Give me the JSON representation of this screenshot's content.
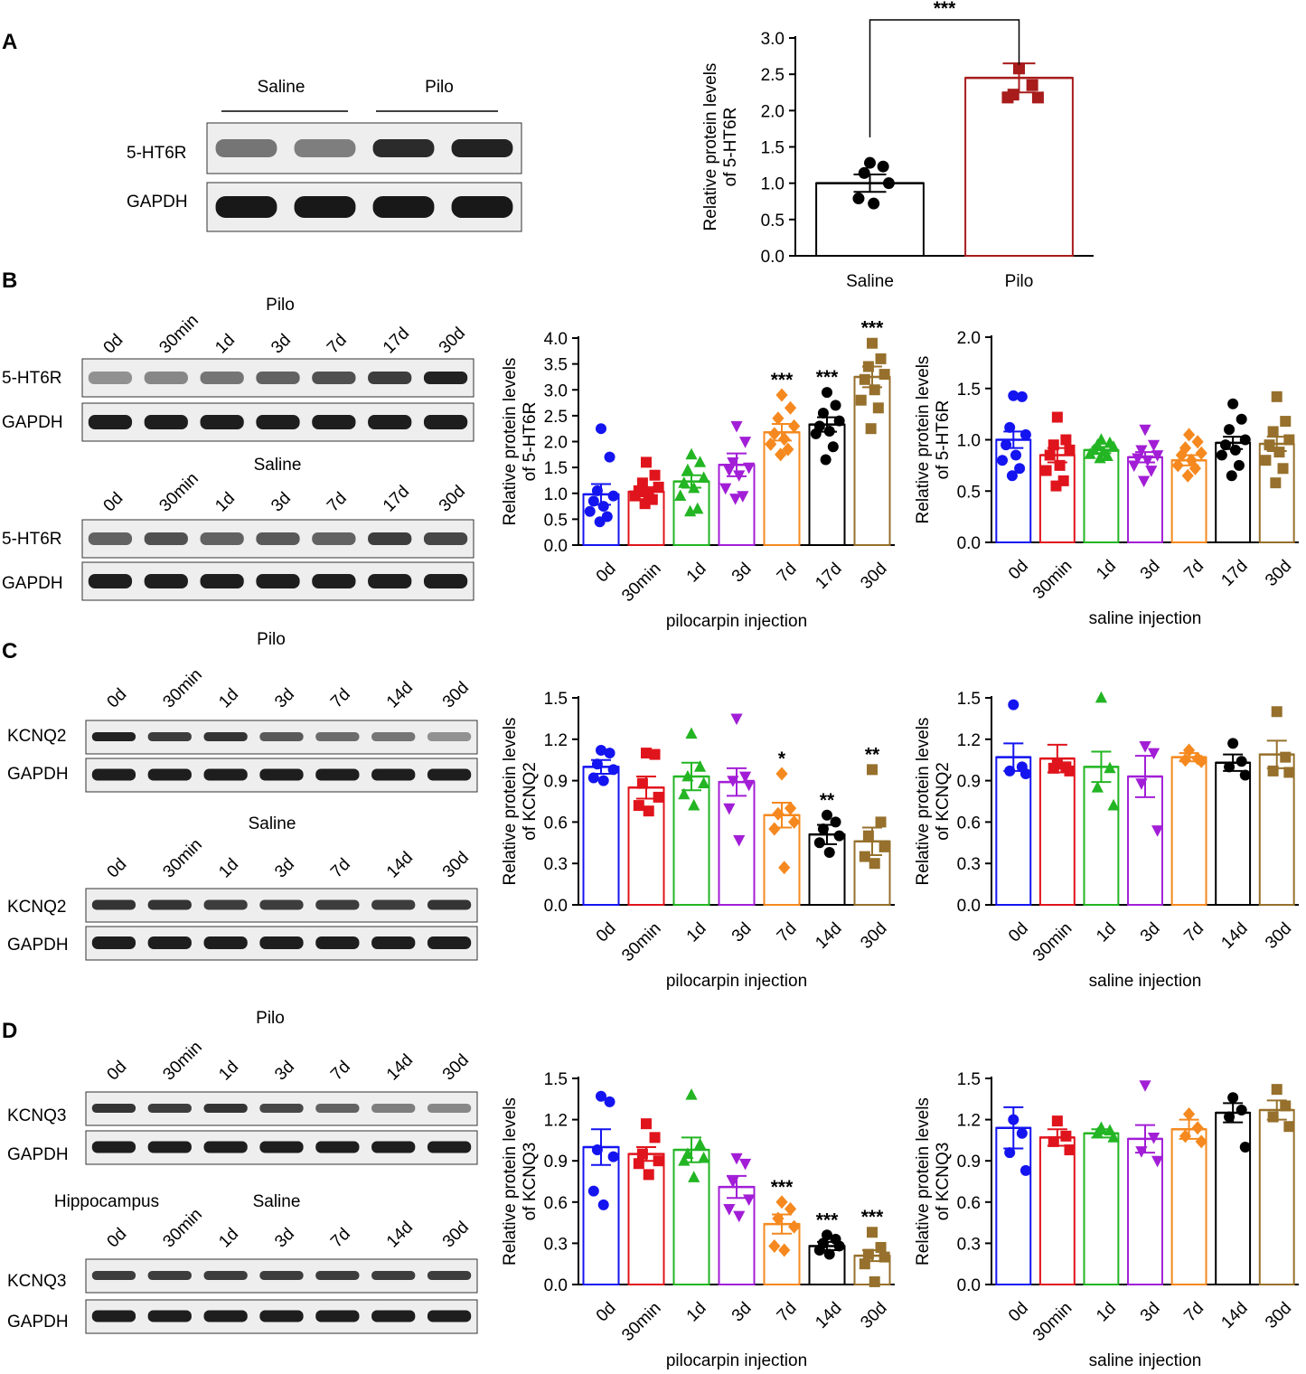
{
  "panels": {
    "A": {
      "letter": "A",
      "blot": {
        "groups": [
          "Saline",
          "Pilo"
        ],
        "rows": [
          "5-HT6R",
          "GAPDH"
        ],
        "target_intensity": [
          0.45,
          0.4,
          0.85,
          0.9
        ],
        "gapdh_intensity": [
          0.95,
          0.95,
          0.95,
          0.95
        ]
      }
    },
    "B": {
      "letter": "B",
      "lanes": [
        "0d",
        "30min",
        "1d",
        "3d",
        "7d",
        "17d",
        "30d"
      ],
      "pilo_title": "Pilo",
      "saline_title": "Saline",
      "rows": [
        "5-HT6R",
        "GAPDH"
      ],
      "pilo_target_intensity": [
        0.3,
        0.35,
        0.45,
        0.55,
        0.65,
        0.75,
        0.9
      ],
      "saline_target_intensity": [
        0.55,
        0.65,
        0.55,
        0.6,
        0.55,
        0.75,
        0.7
      ]
    },
    "C": {
      "letter": "C",
      "lanes": [
        "0d",
        "30min",
        "1d",
        "3d",
        "7d",
        "14d",
        "30d"
      ],
      "pilo_title": "Pilo",
      "saline_title": "Saline",
      "rows": [
        "KCNQ2",
        "GAPDH"
      ],
      "pilo_target_intensity": [
        0.9,
        0.75,
        0.8,
        0.6,
        0.5,
        0.45,
        0.3
      ],
      "saline_target_intensity": [
        0.8,
        0.8,
        0.75,
        0.75,
        0.75,
        0.75,
        0.8
      ]
    },
    "D": {
      "letter": "D",
      "lanes": [
        "0d",
        "30min",
        "1d",
        "3d",
        "7d",
        "14d",
        "30d"
      ],
      "pilo_title": "Pilo",
      "saline_title": "Saline",
      "region_label": "Hippocampus",
      "rows": [
        "KCNQ3",
        "GAPDH"
      ],
      "pilo_target_intensity": [
        0.8,
        0.75,
        0.8,
        0.7,
        0.55,
        0.4,
        0.35
      ],
      "saline_target_intensity": [
        0.75,
        0.75,
        0.75,
        0.75,
        0.75,
        0.75,
        0.75
      ]
    }
  },
  "chart_data": [
    {
      "id": "A-bar",
      "type": "bar",
      "categories": [
        "Saline",
        "Pilo"
      ],
      "values": [
        1.0,
        2.45
      ],
      "errors": [
        0.12,
        0.2
      ],
      "points": [
        [
          1.28,
          1.23,
          1.14,
          1.0,
          0.79,
          0.72
        ],
        [
          2.58,
          2.35,
          2.22,
          2.18,
          2.18
        ]
      ],
      "colors": [
        "#000000",
        "#a81c1c"
      ],
      "markers": [
        "circle",
        "square"
      ],
      "ylabel": [
        "Relative protein levels",
        "of 5-HT6R"
      ],
      "ylim": [
        0,
        3.0
      ],
      "yticks": [
        "0.0",
        "0.5",
        "1.0",
        "1.5",
        "2.0",
        "2.5",
        "3.0"
      ],
      "significance": "***"
    },
    {
      "id": "B-pilo",
      "type": "bar",
      "categories": [
        "0d",
        "30min",
        "1d",
        "3d",
        "7d",
        "17d",
        "30d"
      ],
      "values": [
        0.98,
        1.03,
        1.23,
        1.55,
        2.18,
        2.33,
        3.25
      ],
      "errors": [
        0.2,
        0.09,
        0.12,
        0.22,
        0.16,
        0.14,
        0.2
      ],
      "points": [
        [
          2.25,
          1.7,
          1.05,
          0.95,
          0.85,
          0.75,
          0.65,
          0.55,
          0.45
        ],
        [
          1.6,
          1.35,
          1.2,
          1.12,
          1.05,
          1.0,
          0.95,
          0.88,
          0.8
        ],
        [
          1.75,
          1.6,
          1.45,
          1.3,
          1.2,
          1.1,
          0.95,
          0.7,
          0.65
        ],
        [
          2.3,
          2.0,
          1.6,
          1.5,
          1.45,
          1.35,
          1.1,
          0.95,
          0.9
        ],
        [
          2.9,
          2.65,
          2.45,
          2.3,
          2.15,
          2.05,
          1.95,
          1.85,
          1.75
        ],
        [
          2.95,
          2.7,
          2.55,
          2.4,
          2.3,
          2.2,
          2.15,
          1.9,
          1.65
        ],
        [
          3.9,
          3.6,
          3.45,
          3.3,
          3.2,
          3.0,
          2.8,
          2.65,
          2.25
        ]
      ],
      "colors": [
        "#1414f0",
        "#e0141c",
        "#23b523",
        "#a21ed6",
        "#f5891f",
        "#000000",
        "#96702c"
      ],
      "markers": [
        "circle",
        "square",
        "triangle",
        "tridown",
        "diamond",
        "circle",
        "square"
      ],
      "ylabel": [
        "Relative protein levels",
        "of 5-HT6R"
      ],
      "xlabel": "pilocarpin injection",
      "ylim": [
        0,
        4.0
      ],
      "yticks": [
        "0.0",
        "0.5",
        "1.0",
        "1.5",
        "2.0",
        "2.5",
        "3.0",
        "3.5",
        "4.0"
      ],
      "significance": [
        "",
        "",
        "",
        "",
        "***",
        "***",
        "***"
      ]
    },
    {
      "id": "B-saline",
      "type": "bar",
      "categories": [
        "0d",
        "30min",
        "1d",
        "3d",
        "7d",
        "17d",
        "30d"
      ],
      "values": [
        1.0,
        0.85,
        0.9,
        0.83,
        0.8,
        0.97,
        0.96
      ],
      "errors": [
        0.08,
        0.07,
        0.03,
        0.05,
        0.05,
        0.06,
        0.07
      ],
      "points": [
        [
          1.43,
          1.42,
          1.12,
          1.05,
          0.95,
          0.85,
          0.8,
          0.72,
          0.65
        ],
        [
          1.22,
          1.0,
          0.95,
          0.9,
          0.85,
          0.75,
          0.7,
          0.6,
          0.55
        ],
        [
          1.0,
          0.97,
          0.95,
          0.93,
          0.9,
          0.88,
          0.86,
          0.84,
          0.82
        ],
        [
          1.1,
          0.95,
          0.9,
          0.85,
          0.82,
          0.8,
          0.75,
          0.7,
          0.6
        ],
        [
          1.05,
          0.98,
          0.92,
          0.87,
          0.85,
          0.8,
          0.75,
          0.72,
          0.65
        ],
        [
          1.35,
          1.2,
          1.1,
          1.0,
          0.95,
          0.9,
          0.85,
          0.75,
          0.65
        ],
        [
          1.42,
          1.18,
          1.08,
          1.0,
          0.95,
          0.88,
          0.8,
          0.72,
          0.58
        ]
      ],
      "colors": [
        "#1414f0",
        "#e0141c",
        "#23b523",
        "#a21ed6",
        "#f5891f",
        "#000000",
        "#96702c"
      ],
      "markers": [
        "circle",
        "square",
        "triangle",
        "tridown",
        "diamond",
        "circle",
        "square"
      ],
      "ylabel": [
        "Relative protein levels",
        "of 5-HT6R"
      ],
      "xlabel": "saline injection",
      "ylim": [
        0,
        2.0
      ],
      "yticks": [
        "0.0",
        "0.5",
        "1.0",
        "1.5",
        "2.0"
      ],
      "significance": [
        "",
        "",
        "",
        "",
        "",
        "",
        ""
      ]
    },
    {
      "id": "C-pilo",
      "type": "bar",
      "categories": [
        "0d",
        "30min",
        "1d",
        "3d",
        "7d",
        "14d",
        "30d"
      ],
      "values": [
        1.0,
        0.85,
        0.93,
        0.89,
        0.65,
        0.51,
        0.46
      ],
      "errors": [
        0.05,
        0.08,
        0.1,
        0.1,
        0.09,
        0.07,
        0.1
      ],
      "points": [
        [
          1.12,
          1.1,
          1.02,
          0.98,
          0.92,
          0.9
        ],
        [
          1.1,
          1.09,
          0.88,
          0.78,
          0.72,
          0.68
        ],
        [
          1.24,
          1.0,
          0.93,
          0.88,
          0.8,
          0.72
        ],
        [
          1.35,
          0.93,
          0.9,
          0.87,
          0.7,
          0.47
        ],
        [
          0.95,
          0.7,
          0.66,
          0.6,
          0.55,
          0.27
        ],
        [
          0.65,
          0.6,
          0.55,
          0.5,
          0.45,
          0.38
        ],
        [
          0.98,
          0.6,
          0.5,
          0.42,
          0.35,
          0.3
        ]
      ],
      "colors": [
        "#1414f0",
        "#e0141c",
        "#23b523",
        "#a21ed6",
        "#f5891f",
        "#000000",
        "#96702c"
      ],
      "markers": [
        "circle",
        "square",
        "triangle",
        "tridown",
        "diamond",
        "circle",
        "square"
      ],
      "ylabel": [
        "Relative protein levels",
        "of KCNQ2"
      ],
      "xlabel": "pilocarpin injection",
      "ylim": [
        0,
        1.5
      ],
      "yticks": [
        "0.0",
        "0.3",
        "0.6",
        "0.9",
        "1.2",
        "1.5"
      ],
      "significance": [
        "",
        "",
        "",
        "",
        "*",
        "**",
        "**"
      ]
    },
    {
      "id": "C-saline",
      "type": "bar",
      "categories": [
        "0d",
        "30min",
        "1d",
        "3d",
        "7d",
        "14d",
        "30d"
      ],
      "values": [
        1.07,
        1.06,
        1.0,
        0.93,
        1.07,
        1.03,
        1.09
      ],
      "errors": [
        0.1,
        0.1,
        0.11,
        0.15,
        0.03,
        0.06,
        0.1
      ],
      "points": [
        [
          1.45,
          1.0,
          0.97,
          0.95
        ],
        [
          1.02,
          1.0,
          0.99,
          0.97
        ],
        [
          1.5,
          0.99,
          0.85,
          0.72
        ],
        [
          1.15,
          1.1,
          0.88,
          0.54
        ],
        [
          1.12,
          1.06,
          1.05,
          1.04
        ],
        [
          1.17,
          1.04,
          1.0,
          0.94
        ],
        [
          1.4,
          1.07,
          0.97,
          0.96
        ]
      ],
      "colors": [
        "#1414f0",
        "#e0141c",
        "#23b523",
        "#a21ed6",
        "#f5891f",
        "#000000",
        "#96702c"
      ],
      "markers": [
        "circle",
        "square",
        "triangle",
        "tridown",
        "diamond",
        "circle",
        "square"
      ],
      "ylabel": [
        "Relative protein levels",
        "of KCNQ2"
      ],
      "xlabel": "saline injection",
      "ylim": [
        0,
        1.5
      ],
      "yticks": [
        "0.0",
        "0.3",
        "0.6",
        "0.9",
        "1.2",
        "1.5"
      ],
      "significance": [
        "",
        "",
        "",
        "",
        "",
        "",
        ""
      ]
    },
    {
      "id": "D-pilo",
      "type": "bar",
      "categories": [
        "0d",
        "30min",
        "1d",
        "3d",
        "7d",
        "14d",
        "30d"
      ],
      "values": [
        1.0,
        0.95,
        0.98,
        0.71,
        0.44,
        0.28,
        0.21
      ],
      "errors": [
        0.13,
        0.05,
        0.09,
        0.08,
        0.07,
        0.03,
        0.04
      ],
      "points": [
        [
          1.37,
          1.33,
          0.98,
          0.93,
          0.68,
          0.58
        ],
        [
          1.17,
          1.07,
          0.95,
          0.9,
          0.88,
          0.8
        ],
        [
          1.38,
          1.02,
          0.95,
          0.92,
          0.9,
          0.78
        ],
        [
          0.92,
          0.88,
          0.75,
          0.62,
          0.55,
          0.5
        ],
        [
          0.6,
          0.55,
          0.48,
          0.42,
          0.28,
          0.25
        ],
        [
          0.36,
          0.33,
          0.3,
          0.28,
          0.25,
          0.22
        ],
        [
          0.38,
          0.27,
          0.22,
          0.2,
          0.15,
          0.02
        ]
      ],
      "colors": [
        "#1414f0",
        "#e0141c",
        "#23b523",
        "#a21ed6",
        "#f5891f",
        "#000000",
        "#96702c"
      ],
      "markers": [
        "circle",
        "square",
        "triangle",
        "tridown",
        "diamond",
        "circle",
        "square"
      ],
      "ylabel": [
        "Relative protein levels",
        "of KCNQ3"
      ],
      "xlabel": "pilocarpin injection",
      "ylim": [
        0,
        1.5
      ],
      "yticks": [
        "0.0",
        "0.3",
        "0.6",
        "0.9",
        "1.2",
        "1.5"
      ],
      "significance": [
        "",
        "",
        "",
        "",
        "***",
        "***",
        "***"
      ]
    },
    {
      "id": "D-saline",
      "type": "bar",
      "categories": [
        "0d",
        "30min",
        "1d",
        "3d",
        "7d",
        "14d",
        "30d"
      ],
      "values": [
        1.14,
        1.07,
        1.1,
        1.06,
        1.13,
        1.25,
        1.27
      ],
      "errors": [
        0.15,
        0.06,
        0.03,
        0.1,
        0.07,
        0.07,
        0.07
      ],
      "points": [
        [
          1.2,
          1.1,
          0.96,
          0.83
        ],
        [
          1.19,
          1.08,
          1.04,
          0.98
        ],
        [
          1.14,
          1.12,
          1.1,
          1.07
        ],
        [
          1.45,
          1.07,
          0.97,
          0.9
        ],
        [
          1.24,
          1.14,
          1.08,
          1.04
        ],
        [
          1.36,
          1.27,
          1.22,
          1.0
        ],
        [
          1.42,
          1.3,
          1.22,
          1.15
        ]
      ],
      "colors": [
        "#1414f0",
        "#e0141c",
        "#23b523",
        "#a21ed6",
        "#f5891f",
        "#000000",
        "#96702c"
      ],
      "markers": [
        "circle",
        "square",
        "triangle",
        "tridown",
        "diamond",
        "circle",
        "square"
      ],
      "ylabel": [
        "Relative protein levels",
        "of KCNQ3"
      ],
      "xlabel": "saline injection",
      "ylim": [
        0,
        1.5
      ],
      "yticks": [
        "0.0",
        "0.3",
        "0.6",
        "0.9",
        "1.2",
        "1.5"
      ],
      "significance": [
        "",
        "",
        "",
        "",
        "",
        "",
        ""
      ]
    }
  ]
}
